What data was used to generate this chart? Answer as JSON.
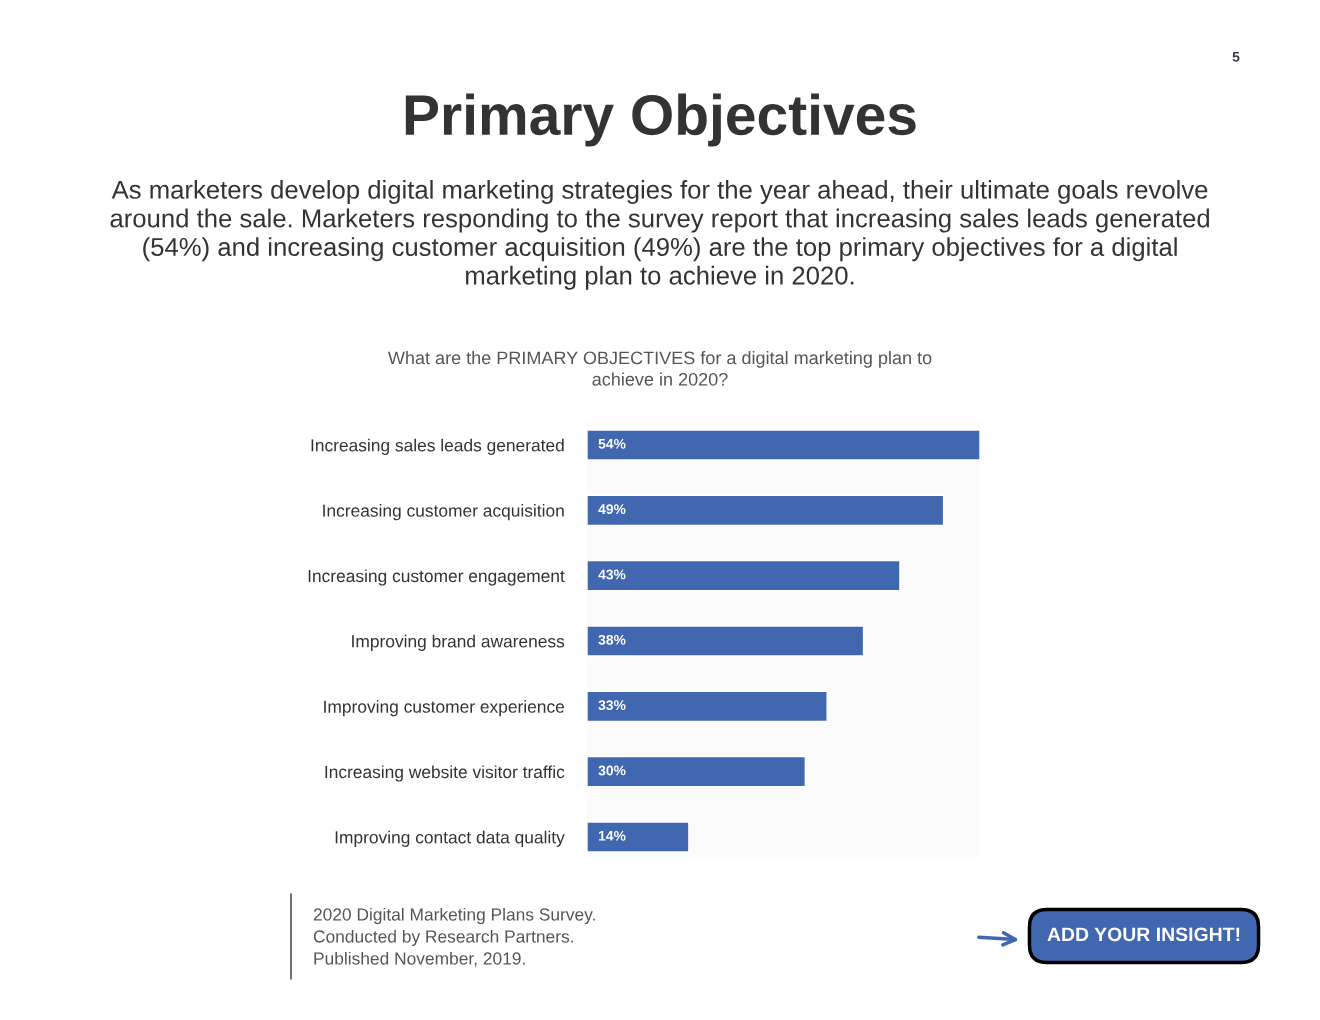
{
  "chart_data": {
    "type": "bar",
    "orientation": "horizontal",
    "title": "Primary Objectives",
    "subtitle": "As marketers develop digital marketing strategies for the year ahead, their ultimate goals revolve around the sale. Marketers responding to the survey report that increasing sales leads generated (54%) and increasing customer acquisition (49%) are the top primary objectives for a digital marketing plan to achieve in 2020.",
    "categories": [
      "Increasing sales leads generated",
      "Increasing customer acquisition",
      "Increasing customer engagement",
      "Improving brand awareness",
      "Improving customer experience",
      "Increasing website visitor traffic",
      "Improving contact data quality"
    ],
    "values": [
      54,
      49,
      43,
      38,
      33,
      30,
      14
    ],
    "color": "#4267b1",
    "value_labels": [
      "54%",
      "49%",
      "43%",
      "38%",
      "33%",
      "30%",
      "14%"
    ],
    "xlim": [
      0,
      54
    ],
    "tick_labels": "y",
    "annotations": [
      "5",
      "What are the PRIMARY OBJECTIVES for a digital marketing plan to achieve in 2020?",
      "2020 Digital Marketing Plans Survey.",
      "Conducted by Research Partners.",
      "Published November, 2019.",
      "ADD YOUR INSIGHT!"
    ]
  }
}
